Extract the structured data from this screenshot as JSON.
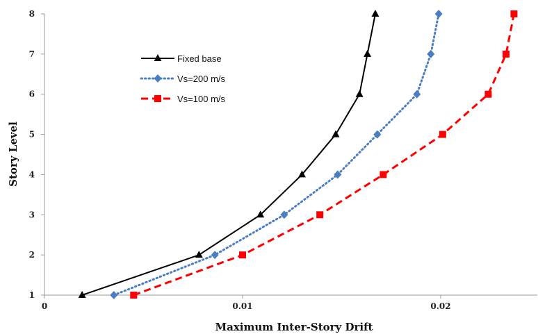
{
  "chart_data": {
    "type": "line",
    "xlabel": "Maximum Inter-Story Drift",
    "ylabel": "Story Level",
    "xlim": [
      0,
      0.025
    ],
    "ylim": [
      1,
      8
    ],
    "x_ticks": [
      0,
      0.01,
      0.02
    ],
    "x_tick_labels": [
      "0",
      "0.01",
      "0.02"
    ],
    "y_ticks": [
      1,
      2,
      3,
      4,
      5,
      6,
      7,
      8
    ],
    "y_tick_labels": [
      "1",
      "2",
      "3",
      "4",
      "5",
      "6",
      "7",
      "8"
    ],
    "grid": false,
    "legend_position": "top-left",
    "series": [
      {
        "name": "Fixed base",
        "color": "#000000",
        "line_style": "solid",
        "marker": "triangle",
        "x": [
          0.0019,
          0.0078,
          0.0109,
          0.013,
          0.0147,
          0.0159,
          0.0163,
          0.0167
        ],
        "y": [
          1,
          2,
          3,
          4,
          5,
          6,
          7,
          8
        ]
      },
      {
        "name": "Vs=200 m/s",
        "color": "#4A7EC0",
        "line_style": "dotted",
        "marker": "diamond",
        "x": [
          0.0035,
          0.0086,
          0.0121,
          0.0148,
          0.0168,
          0.0188,
          0.0195,
          0.0199
        ],
        "y": [
          1,
          2,
          3,
          4,
          5,
          6,
          7,
          8
        ]
      },
      {
        "name": "Vs=100 m/s",
        "color": "#FF0000",
        "line_style": "dashed",
        "marker": "square",
        "x": [
          0.0045,
          0.01,
          0.0139,
          0.0171,
          0.0201,
          0.0224,
          0.0233,
          0.0237
        ],
        "y": [
          1,
          2,
          3,
          4,
          5,
          6,
          7,
          8
        ]
      }
    ]
  }
}
